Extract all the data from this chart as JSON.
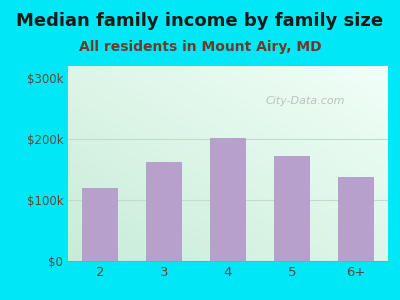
{
  "title": "Median family income by family size",
  "subtitle": "All residents in Mount Airy, MD",
  "categories": [
    "2",
    "3",
    "4",
    "5",
    "6+"
  ],
  "values": [
    120000,
    162000,
    202000,
    172000,
    138000
  ],
  "bar_color": "#b8a0cc",
  "title_fontsize": 13,
  "subtitle_fontsize": 10,
  "yticks": [
    0,
    100000,
    200000,
    300000
  ],
  "ytick_labels": [
    "$0",
    "$100k",
    "$200k",
    "$300k"
  ],
  "ylim": [
    0,
    320000
  ],
  "bg_outer": "#00e8f8",
  "watermark": "City-Data.com",
  "title_color": "#1a1a1a",
  "subtitle_color": "#6b3a2a",
  "tick_color": "#5a4a3a",
  "gridline_color": "#d8eed8"
}
